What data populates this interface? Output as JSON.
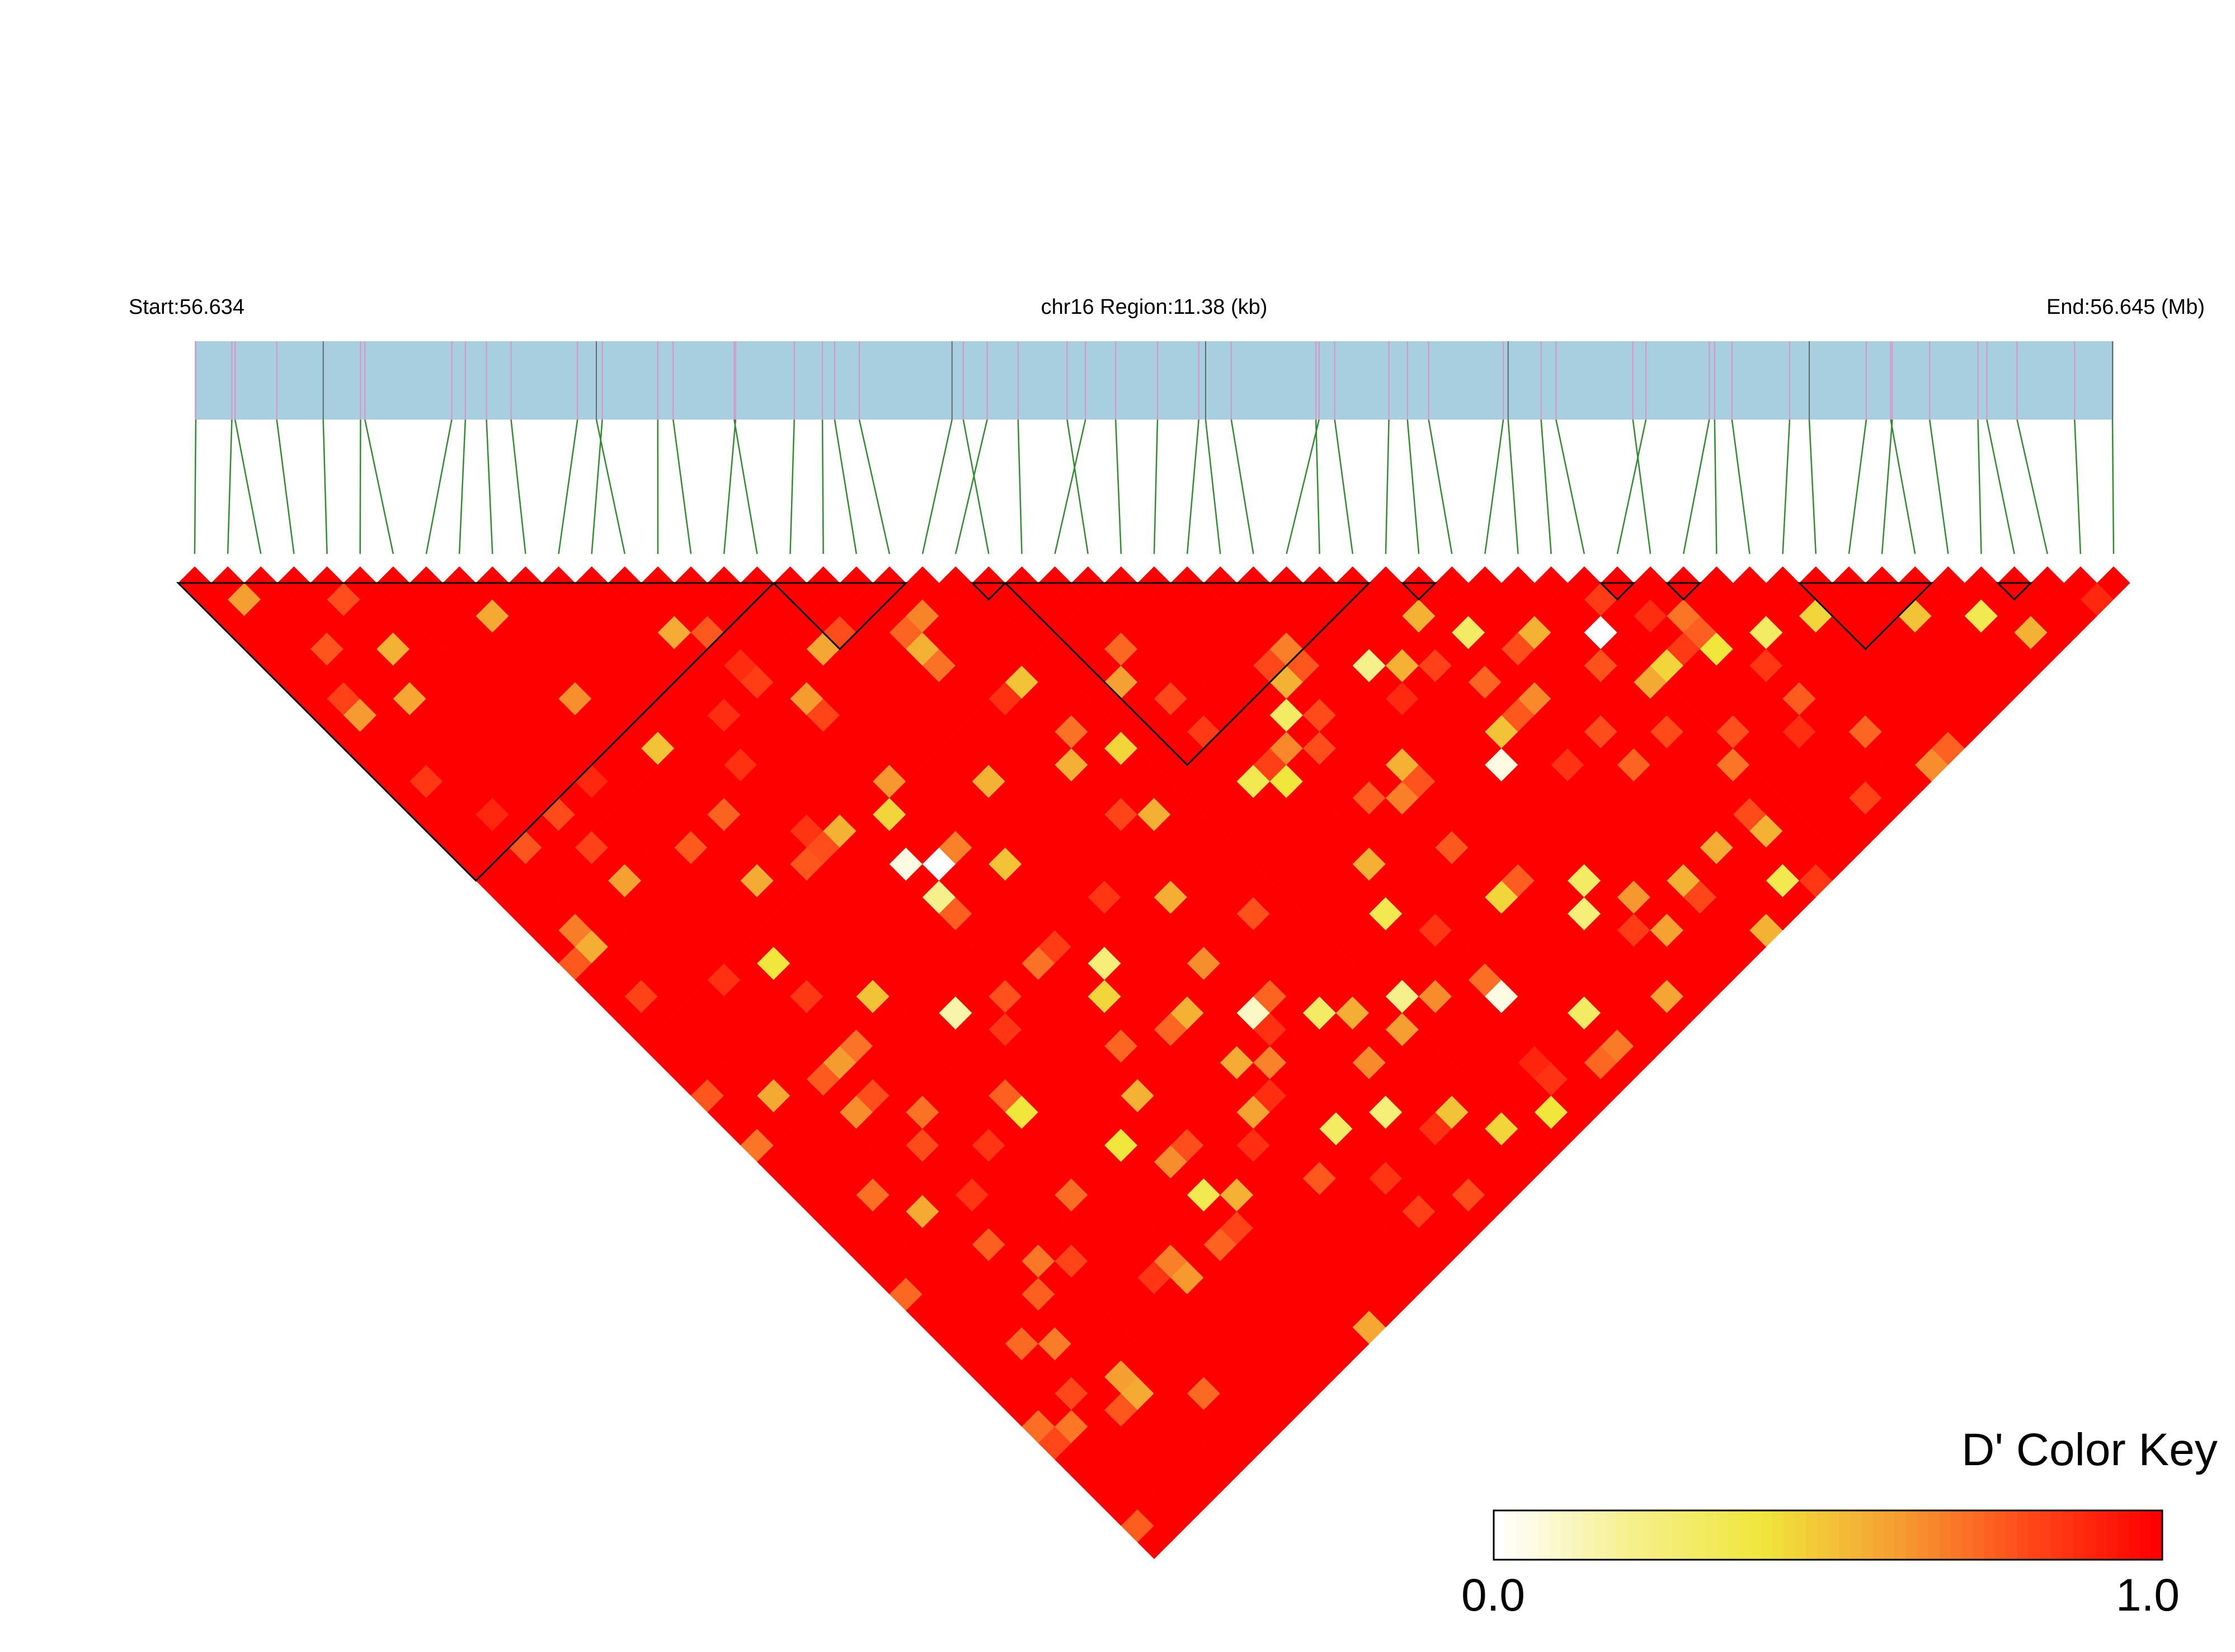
{
  "header": {
    "start": "Start:56.634",
    "region": "chr16 Region:11.38 (kb)",
    "end": "End:56.645 (Mb)"
  },
  "color_key": {
    "title": "D' Color Key",
    "min_label": "0.0",
    "max_label": "1.0",
    "gradient": [
      "#ffffff",
      "#f6f08c",
      "#f0e63c",
      "#f5a032",
      "#ff4a1a",
      "#ff0000"
    ]
  },
  "colors": {
    "track_fill": "#a8cfe0",
    "snp_tick": "#e090c8",
    "gene_tick": "#666666",
    "connector": "#2e8b2e",
    "high_ld": "#ff0000",
    "block_outline": "#000000"
  },
  "chart_data": {
    "type": "heatmap",
    "title": "",
    "metric": "D'",
    "chromosome": "chr16",
    "region_start_mb": 56.634,
    "region_end_mb": 56.645,
    "region_length_kb": 11.38,
    "snp_count": 59,
    "value_range": [
      0.0,
      1.0
    ],
    "haplotype_blocks": [
      [
        1,
        18
      ],
      [
        19,
        22
      ],
      [
        25,
        25
      ],
      [
        26,
        36
      ],
      [
        38,
        38
      ],
      [
        44,
        44
      ],
      [
        46,
        46
      ],
      [
        50,
        53
      ],
      [
        56,
        56
      ]
    ],
    "low_ld_pairs": [
      {
        "i": 4,
        "j": 8,
        "d": 0.55
      },
      {
        "i": 9,
        "j": 19,
        "d": 0.5
      },
      {
        "i": 14,
        "j": 28,
        "d": 0.45
      },
      {
        "i": 13,
        "j": 30,
        "d": 0.05
      },
      {
        "i": 14,
        "j": 31,
        "d": 0.0
      },
      {
        "i": 13,
        "j": 32,
        "d": 0.2
      },
      {
        "i": 16,
        "j": 33,
        "d": 0.5
      },
      {
        "i": 18,
        "j": 30,
        "d": 0.55
      },
      {
        "i": 20,
        "j": 24,
        "d": 0.55
      },
      {
        "i": 22,
        "j": 28,
        "d": 0.5
      },
      {
        "i": 23,
        "j": 33,
        "d": 0.45
      },
      {
        "i": 25,
        "j": 31,
        "d": 0.6
      },
      {
        "i": 26,
        "j": 38,
        "d": 0.35
      },
      {
        "i": 27,
        "j": 39,
        "d": 0.4
      },
      {
        "i": 29,
        "j": 37,
        "d": 0.3
      },
      {
        "i": 30,
        "j": 36,
        "d": 0.55
      },
      {
        "i": 31,
        "j": 42,
        "d": 0.55
      },
      {
        "i": 33,
        "j": 38,
        "d": 0.2
      },
      {
        "i": 34,
        "j": 45,
        "d": 0.05
      },
      {
        "i": 35,
        "j": 44,
        "d": 0.5
      },
      {
        "i": 36,
        "j": 38,
        "d": 0.55
      },
      {
        "i": 37,
        "j": 40,
        "d": 0.3
      },
      {
        "i": 39,
        "j": 42,
        "d": 0.55
      },
      {
        "i": 41,
        "j": 44,
        "d": 0.0
      },
      {
        "i": 42,
        "j": 47,
        "d": 0.45
      },
      {
        "i": 44,
        "j": 48,
        "d": 0.4
      },
      {
        "i": 46,
        "j": 49,
        "d": 0.3
      },
      {
        "i": 48,
        "j": 50,
        "d": 0.45
      },
      {
        "i": 51,
        "j": 53,
        "d": 0.5
      },
      {
        "i": 53,
        "j": 55,
        "d": 0.35
      },
      {
        "i": 54,
        "j": 57,
        "d": 0.55
      },
      {
        "i": 19,
        "j": 45,
        "d": 0.1
      },
      {
        "i": 21,
        "j": 47,
        "d": 0.3
      },
      {
        "i": 24,
        "j": 49,
        "d": 0.2
      },
      {
        "i": 15,
        "j": 40,
        "d": 0.45
      },
      {
        "i": 17,
        "j": 43,
        "d": 0.55
      },
      {
        "i": 27,
        "j": 52,
        "d": 0.05
      },
      {
        "i": 29,
        "j": 55,
        "d": 0.3
      },
      {
        "i": 11,
        "j": 45,
        "d": 0.4
      },
      {
        "i": 12,
        "j": 49,
        "d": 0.35
      },
      {
        "i": 22,
        "j": 54,
        "d": 0.5
      },
      {
        "i": 20,
        "j": 52,
        "d": 0.25
      },
      {
        "i": 25,
        "j": 57,
        "d": 0.4
      },
      {
        "i": 33,
        "j": 51,
        "d": 0.3
      },
      {
        "i": 36,
        "j": 54,
        "d": 0.55
      },
      {
        "i": 39,
        "j": 57,
        "d": 0.35
      },
      {
        "i": 10,
        "j": 36,
        "d": 0.15
      },
      {
        "i": 8,
        "j": 33,
        "d": 0.5
      },
      {
        "i": 16,
        "j": 39,
        "d": 0.25
      },
      {
        "i": 30,
        "j": 49,
        "d": 0.45
      },
      {
        "i": 40,
        "j": 55,
        "d": 0.55
      },
      {
        "i": 6,
        "j": 29,
        "d": 0.4
      },
      {
        "i": 18,
        "j": 51,
        "d": 0.3
      },
      {
        "i": 23,
        "j": 56,
        "d": 0.45
      },
      {
        "i": 12,
        "j": 27,
        "d": 0.55
      },
      {
        "i": 26,
        "j": 46,
        "d": 0.35
      },
      {
        "i": 32,
        "j": 52,
        "d": 0.25
      },
      {
        "i": 37,
        "j": 58,
        "d": 0.55
      },
      {
        "i": 9,
        "j": 41,
        "d": 0.4
      },
      {
        "i": 13,
        "j": 44,
        "d": 0.55
      }
    ],
    "legend": {
      "title": "D' Color Key",
      "min": 0.0,
      "max": 1.0,
      "placement": "bottom-right"
    }
  }
}
